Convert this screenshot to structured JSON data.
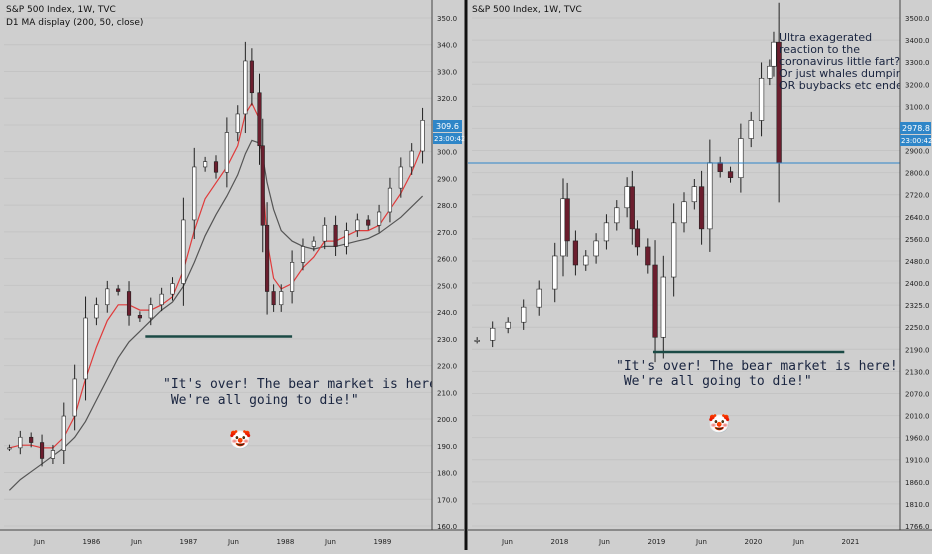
{
  "left": {
    "title": "S&P 500 Index, 1W, TVC",
    "indicator": "D1 MA display (200, 50, close)",
    "price_ticks": [
      "350.0",
      "340.0",
      "330.0",
      "320.0",
      "310.0",
      "300.0",
      "290.0",
      "280.0",
      "270.0",
      "260.0",
      "250.0",
      "240.0",
      "230.0",
      "220.0",
      "210.0",
      "200.0",
      "190.0",
      "180.0",
      "170.0",
      "160.0"
    ],
    "time_ticks": [
      "Jun",
      "1986",
      "Jun",
      "1987",
      "Jun",
      "1988",
      "Jun",
      "1989"
    ],
    "last_price": "309.6",
    "countdown": "23:00:42",
    "quote": [
      "\"It's over! The bear market is here!",
      " We're all going to die!\""
    ],
    "clown": "🤡"
  },
  "right": {
    "title": "S&P 500 Index, 1W, TVC",
    "price_ticks": [
      "3500.0",
      "3400.0",
      "3300.0",
      "3200.0",
      "3100.0",
      "3000.0",
      "2900.0",
      "2800.0",
      "2720.0",
      "2640.0",
      "2560.0",
      "2480.0",
      "2400.0",
      "2325.0",
      "2250.0",
      "2190.0",
      "2130.0",
      "2070.0",
      "2010.0",
      "1960.0",
      "1910.0",
      "1860.0",
      "1810.0",
      "1766.0"
    ],
    "time_ticks": [
      "Jun",
      "2018",
      "Jun",
      "2019",
      "Jun",
      "2020",
      "Jun",
      "2021"
    ],
    "last_price": "2978.8",
    "countdown": "23:00:42",
    "annotation": [
      "Ultra exagerated",
      "reaction to the",
      "coronavirus little fart?",
      "Or just whales dumping?",
      "OR buybacks etc ended?"
    ],
    "quote": [
      "\"It's over! The bear market is here!",
      " We're all going to die!\""
    ],
    "clown": "🤡"
  },
  "colors": {
    "bg": "#cfcfcf",
    "up": "#ffffff",
    "down": "#6b1e2e",
    "wick": "#222222",
    "ma_fast": "#e03b3b",
    "ma_slow": "#555555",
    "hline": "#1b4a45",
    "cursor": "#2f86c8",
    "tag": "#2f86c8"
  },
  "chart_data": [
    {
      "type": "candlestick",
      "title": "S&P 500 Index, 1W, TVC",
      "x_range": [
        1985.4,
        1989.3
      ],
      "ylim": [
        155,
        355
      ],
      "x": [
        1985.45,
        1985.55,
        1985.65,
        1985.75,
        1985.85,
        1985.95,
        1986.05,
        1986.15,
        1986.25,
        1986.35,
        1986.45,
        1986.55,
        1986.65,
        1986.75,
        1986.85,
        1986.95,
        1987.05,
        1987.15,
        1987.25,
        1987.35,
        1987.45,
        1987.55,
        1987.62,
        1987.68,
        1987.75,
        1987.78,
        1987.82,
        1987.88,
        1987.95,
        1988.05,
        1988.15,
        1988.25,
        1988.35,
        1988.45,
        1988.55,
        1988.65,
        1988.75,
        1988.85,
        1988.95,
        1989.05,
        1989.15,
        1989.25
      ],
      "close": [
        186,
        190,
        188,
        182,
        185,
        198,
        212,
        235,
        240,
        246,
        245,
        236,
        235,
        240,
        244,
        248,
        272,
        292,
        294,
        290,
        305,
        312,
        332,
        320,
        300,
        270,
        245,
        240,
        245,
        256,
        262,
        264,
        270,
        262,
        268,
        272,
        270,
        275,
        284,
        292,
        298,
        309.6
      ],
      "ma_fast": [
        186,
        187,
        187,
        186,
        186,
        190,
        198,
        212,
        224,
        234,
        240,
        240,
        238,
        238,
        240,
        243,
        253,
        268,
        280,
        286,
        292,
        300,
        312,
        316,
        310,
        288,
        264,
        250,
        246,
        248,
        254,
        258,
        264,
        264,
        266,
        268,
        268,
        270,
        276,
        282,
        290,
        300
      ],
      "ma_slow": [
        170,
        174,
        177,
        180,
        183,
        186,
        190,
        196,
        204,
        212,
        220,
        226,
        230,
        234,
        238,
        241,
        247,
        256,
        266,
        274,
        281,
        289,
        297,
        302,
        301,
        296,
        286,
        276,
        268,
        264,
        262,
        261,
        262,
        262,
        263,
        264,
        265,
        267,
        270,
        273,
        277,
        281
      ],
      "support_level": 228
    },
    {
      "type": "candlestick",
      "title": "S&P 500 Index, 1W, TVC",
      "x_range": [
        2017.2,
        2021.3
      ],
      "ylim": [
        1760,
        3520
      ],
      "x": [
        2017.25,
        2017.4,
        2017.55,
        2017.7,
        2017.85,
        2018.0,
        2018.08,
        2018.12,
        2018.2,
        2018.3,
        2018.4,
        2018.5,
        2018.6,
        2018.7,
        2018.75,
        2018.8,
        2018.9,
        2018.97,
        2019.05,
        2019.15,
        2019.25,
        2019.35,
        2019.42,
        2019.5,
        2019.6,
        2019.7,
        2019.8,
        2019.9,
        2020.0,
        2020.08,
        2020.12,
        2020.17
      ],
      "close": [
        2390,
        2430,
        2450,
        2500,
        2560,
        2670,
        2860,
        2720,
        2640,
        2670,
        2720,
        2780,
        2830,
        2900,
        2760,
        2700,
        2640,
        2400,
        2600,
        2780,
        2850,
        2900,
        2760,
        2980,
        2950,
        2930,
        3060,
        3120,
        3260,
        3300,
        3380,
        2978.8
      ],
      "support_level": 2351,
      "cursor_level": 2978.8
    }
  ]
}
